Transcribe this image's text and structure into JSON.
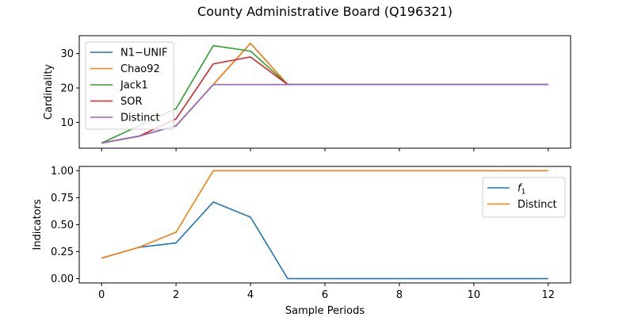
{
  "chart_data": {
    "type": "line",
    "title": "County Administrative Board (Q196321)",
    "xlabel": "Sample Periods",
    "x": [
      0,
      1,
      2,
      3,
      4,
      5,
      6,
      7,
      8,
      9,
      10,
      11,
      12
    ],
    "x_ticks": [
      0,
      2,
      4,
      6,
      8,
      10,
      12
    ],
    "xlim": [
      -0.6,
      12.6
    ],
    "colors": {
      "blue": "#1f77b4",
      "orange": "#ff7f0e",
      "green": "#2ca02c",
      "red": "#d62728",
      "purple": "#9467bd"
    },
    "subplots": [
      {
        "ylabel": "Cardinality",
        "ylim": [
          2.5,
          35.2
        ],
        "y_ticks": [
          10,
          20,
          30
        ],
        "y_tick_labels": [
          "10",
          "20",
          "30"
        ],
        "legend_position": "top-left",
        "series": [
          {
            "name": "N1−UNIF",
            "color": "#1f77b4",
            "values": [
              4,
              6,
              9,
              21,
              33,
              21,
              21,
              21,
              21,
              21,
              21,
              21,
              21
            ]
          },
          {
            "name": "Chao92",
            "color": "#ff7f0e",
            "values": [
              4,
              6,
              9,
              21,
              33,
              21,
              21,
              21,
              21,
              21,
              21,
              21,
              21
            ]
          },
          {
            "name": "Jack1",
            "color": "#2ca02c",
            "values": [
              4,
              9,
              14,
              32.3,
              30.7,
              21,
              21,
              21,
              21,
              21,
              21,
              21,
              21
            ]
          },
          {
            "name": "SOR",
            "color": "#d62728",
            "values": [
              4,
              6,
              11,
              27,
              29,
              21,
              21,
              21,
              21,
              21,
              21,
              21,
              21
            ]
          },
          {
            "name": "Distinct",
            "color": "#9467bd",
            "values": [
              4,
              6,
              9,
              21,
              21,
              21,
              21,
              21,
              21,
              21,
              21,
              21,
              21
            ]
          }
        ]
      },
      {
        "ylabel": "Indicators",
        "ylim": [
          -0.04,
          1.04
        ],
        "y_ticks": [
          0,
          0.25,
          0.5,
          0.75,
          1.0
        ],
        "y_tick_labels": [
          "0.00",
          "0.25",
          "0.50",
          "0.75",
          "1.00"
        ],
        "legend_position": "top-right",
        "series": [
          {
            "name": "f",
            "name_subscript": "1",
            "color": "#1f77b4",
            "values": [
              0.19,
              0.29,
              0.33,
              0.71,
              0.57,
              0.0,
              0.0,
              0.0,
              0.0,
              0.0,
              0.0,
              0.0,
              0.0
            ]
          },
          {
            "name": "Distinct",
            "color": "#ff7f0e",
            "values": [
              0.19,
              0.29,
              0.43,
              1.0,
              1.0,
              1.0,
              1.0,
              1.0,
              1.0,
              1.0,
              1.0,
              1.0,
              1.0
            ]
          }
        ]
      }
    ]
  }
}
